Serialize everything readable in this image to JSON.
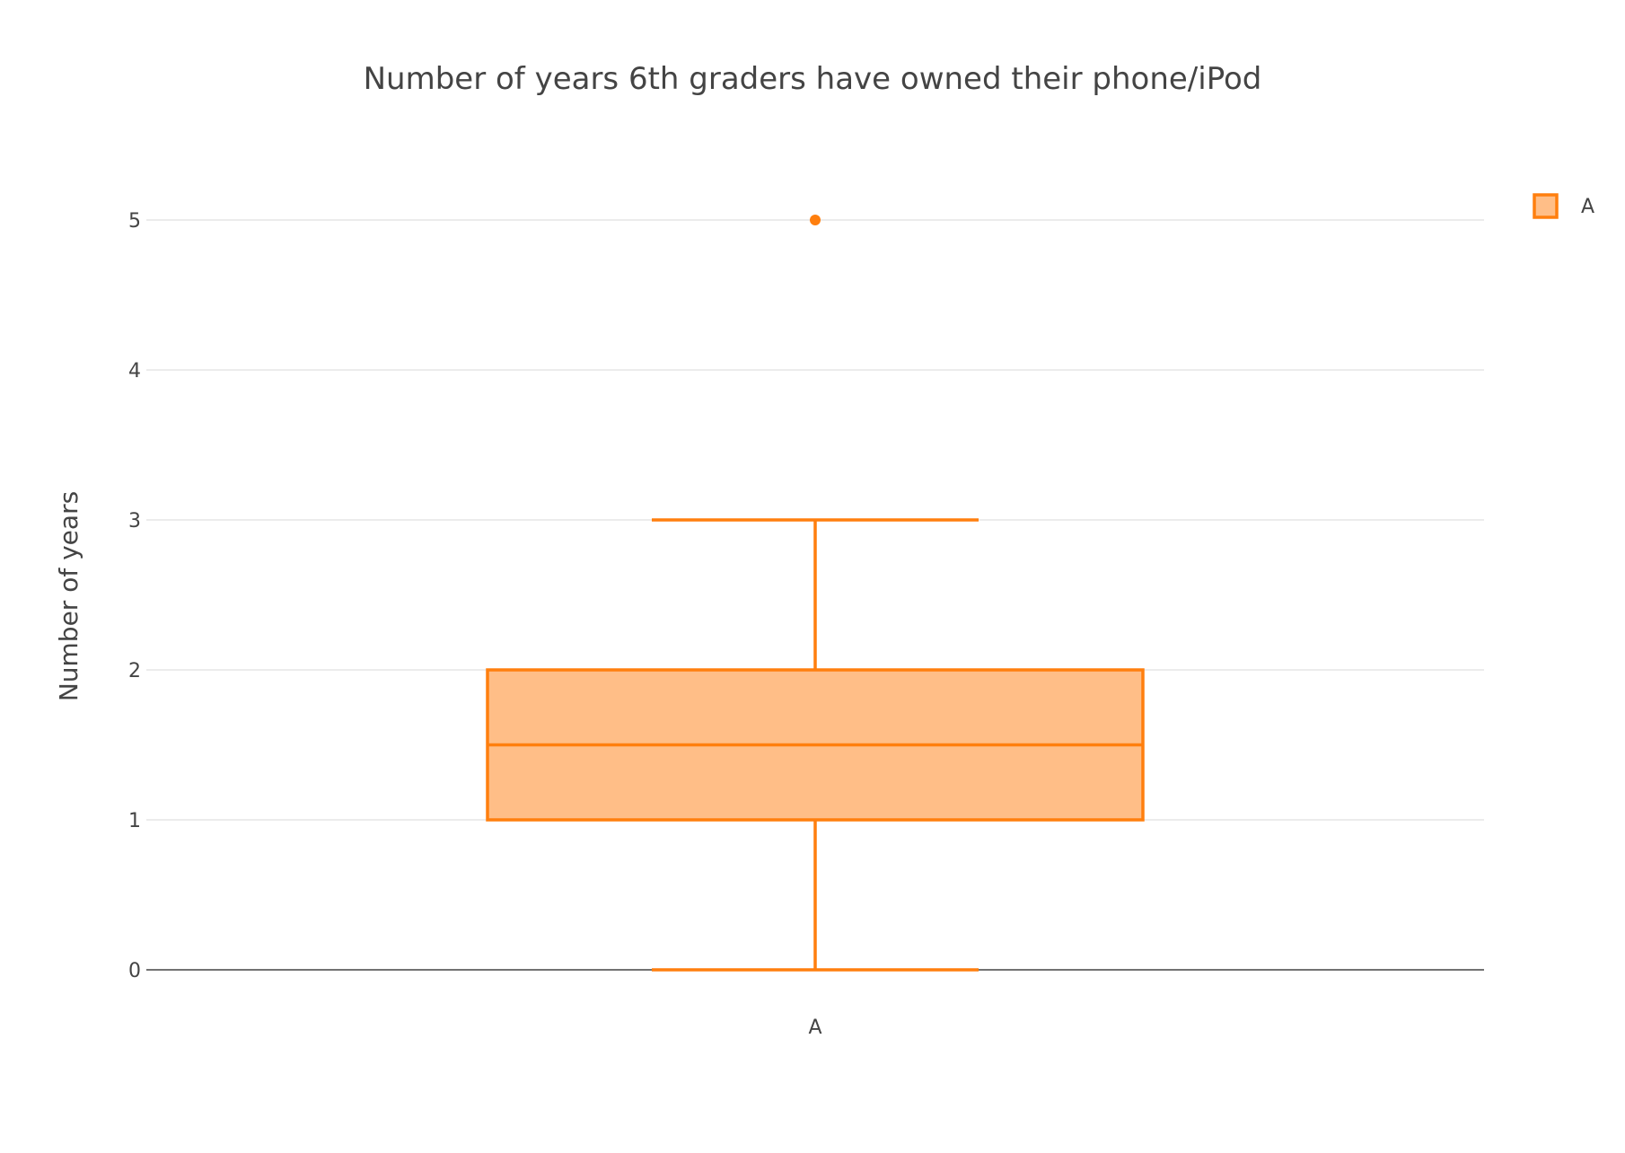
{
  "chart_data": {
    "type": "box",
    "title": "Number of years 6th graders have owned their phone/iPod",
    "xlabel": "",
    "ylabel": "Number of years",
    "ylim": [
      0,
      5.6
    ],
    "yticks": [
      0,
      1,
      2,
      3,
      4,
      5
    ],
    "grid": true,
    "legend_position": "top-right",
    "series": [
      {
        "name": "A",
        "category": "A",
        "min": 0,
        "q1": 1,
        "median": 1.5,
        "q3": 2,
        "max": 3,
        "outliers": [
          5
        ]
      }
    ]
  },
  "colors": {
    "line": "#ff7f0e",
    "fill": "#ffbe87",
    "grid": "#e6e6e6",
    "zeroline": "#444444",
    "text": "#444444"
  }
}
